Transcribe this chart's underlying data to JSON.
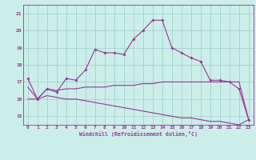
{
  "xlabel": "Windchill (Refroidissement éolien,°C)",
  "background_color": "#cceee8",
  "line_color": "#993399",
  "grid_color": "#99cccc",
  "x": [
    0,
    1,
    2,
    3,
    4,
    5,
    6,
    7,
    8,
    9,
    10,
    11,
    12,
    13,
    14,
    15,
    16,
    17,
    18,
    19,
    20,
    21,
    22,
    23
  ],
  "temp": [
    17.2,
    16.0,
    16.6,
    16.4,
    17.2,
    17.1,
    17.7,
    18.9,
    18.7,
    18.7,
    18.6,
    19.5,
    20.0,
    20.6,
    20.6,
    19.0,
    18.7,
    18.4,
    18.2,
    17.1,
    17.1,
    17.0,
    16.6,
    14.8
  ],
  "windchill": [
    16.7,
    16.0,
    16.6,
    16.5,
    16.6,
    16.6,
    16.7,
    16.7,
    16.7,
    16.8,
    16.8,
    16.8,
    16.9,
    16.9,
    17.0,
    17.0,
    17.0,
    17.0,
    17.0,
    17.0,
    17.0,
    17.0,
    17.0,
    14.8
  ],
  "dew": [
    16.0,
    16.0,
    16.2,
    16.1,
    16.0,
    16.0,
    15.9,
    15.8,
    15.7,
    15.6,
    15.5,
    15.4,
    15.3,
    15.2,
    15.1,
    15.0,
    14.9,
    14.9,
    14.8,
    14.7,
    14.7,
    14.6,
    14.5,
    14.8
  ],
  "ylim": [
    14.5,
    21.5
  ],
  "yticks": [
    15,
    16,
    17,
    18,
    19,
    20,
    21
  ],
  "xticks": [
    0,
    1,
    2,
    3,
    4,
    5,
    6,
    7,
    8,
    9,
    10,
    11,
    12,
    13,
    14,
    15,
    16,
    17,
    18,
    19,
    20,
    21,
    22,
    23
  ]
}
